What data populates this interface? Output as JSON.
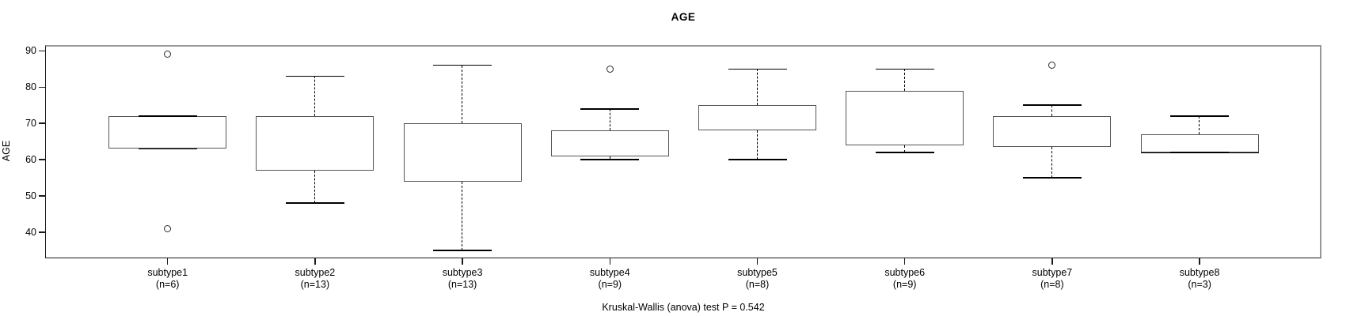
{
  "chart_data": {
    "type": "boxplot",
    "title": "AGE",
    "ylabel": "AGE",
    "xlabel": "",
    "caption": "Kruskal-Wallis (anova) test P = 0.542",
    "ylim": [
      32.8,
      91.6
    ],
    "yticks": [
      40,
      50,
      60,
      70,
      80,
      90
    ],
    "grid": false,
    "legend": false,
    "groups": [
      {
        "label": "subtype1",
        "n_label": "(n=6)",
        "n": 6,
        "stats": {
          "whisker_low": 63,
          "q1": 63,
          "median": 66,
          "q3": 72,
          "whisker_high": 72
        },
        "outliers": [
          89,
          41
        ]
      },
      {
        "label": "subtype2",
        "n_label": "(n=13)",
        "n": 13,
        "stats": {
          "whisker_low": 48,
          "q1": 57,
          "median": 67,
          "q3": 72,
          "whisker_high": 83
        },
        "outliers": []
      },
      {
        "label": "subtype3",
        "n_label": "(n=13)",
        "n": 13,
        "stats": {
          "whisker_low": 35,
          "q1": 54,
          "median": 59,
          "q3": 70,
          "whisker_high": 86
        },
        "outliers": []
      },
      {
        "label": "subtype4",
        "n_label": "(n=9)",
        "n": 9,
        "stats": {
          "whisker_low": 60,
          "q1": 61,
          "median": 64,
          "q3": 68,
          "whisker_high": 74
        },
        "outliers": [
          85
        ]
      },
      {
        "label": "subtype5",
        "n_label": "(n=8)",
        "n": 8,
        "stats": {
          "whisker_low": 60,
          "q1": 68,
          "median": 71,
          "q3": 75,
          "whisker_high": 85
        },
        "outliers": []
      },
      {
        "label": "subtype6",
        "n_label": "(n=9)",
        "n": 9,
        "stats": {
          "whisker_low": 62,
          "q1": 64,
          "median": 66,
          "q3": 79,
          "whisker_high": 85
        },
        "outliers": []
      },
      {
        "label": "subtype7",
        "n_label": "(n=8)",
        "n": 8,
        "stats": {
          "whisker_low": 55,
          "q1": 63.5,
          "median": 66,
          "q3": 72,
          "whisker_high": 75
        },
        "outliers": [
          86
        ]
      },
      {
        "label": "subtype8",
        "n_label": "(n=3)",
        "n": 3,
        "stats": {
          "whisker_low": 62,
          "q1": 62,
          "median": 62,
          "q3": 67,
          "whisker_high": 72
        },
        "outliers": []
      }
    ],
    "colors": {
      "box_border": "#555555",
      "median": "#000000",
      "whisker": "#000000",
      "frame": "#979797",
      "axis": "#1a1a1a",
      "text": "#000000",
      "background": "#ffffff"
    }
  }
}
